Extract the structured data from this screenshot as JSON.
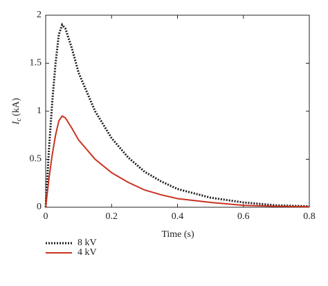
{
  "chart_data": {
    "type": "line",
    "xlabel": "Time (s)",
    "ylabel_parts": [
      "I",
      "c",
      "(kA)"
    ],
    "x": [
      0,
      0.01,
      0.02,
      0.03,
      0.04,
      0.05,
      0.06,
      0.08,
      0.1,
      0.15,
      0.2,
      0.25,
      0.3,
      0.35,
      0.4,
      0.5,
      0.6,
      0.7,
      0.8
    ],
    "series": [
      {
        "name": "8 kV",
        "color": "#1a1a1a",
        "dash": "dotted",
        "values": [
          0,
          0.6,
          1.1,
          1.5,
          1.8,
          1.9,
          1.86,
          1.65,
          1.4,
          1.0,
          0.72,
          0.52,
          0.37,
          0.27,
          0.19,
          0.1,
          0.05,
          0.02,
          0.01
        ]
      },
      {
        "name": "4 kV",
        "color": "#c8321e",
        "dash": "solid",
        "values": [
          0,
          0.3,
          0.55,
          0.75,
          0.9,
          0.95,
          0.93,
          0.82,
          0.7,
          0.5,
          0.36,
          0.26,
          0.18,
          0.13,
          0.09,
          0.05,
          0.02,
          0.01,
          0.005
        ]
      }
    ],
    "xlim": [
      0,
      0.8
    ],
    "xticks": [
      0,
      0.2,
      0.4,
      0.6,
      0.8
    ],
    "ylim": [
      0,
      2
    ],
    "yticks": [
      0,
      0.5,
      1,
      1.5,
      2
    ],
    "grid": false
  }
}
